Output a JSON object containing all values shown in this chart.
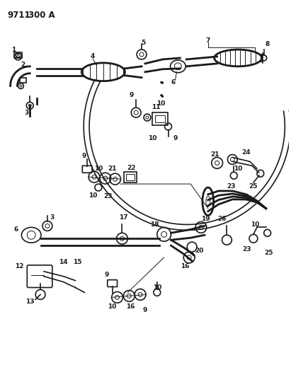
{
  "title": "9711 300 A",
  "bg_color": "#ffffff",
  "line_color": "#1a1a1a",
  "title_fontsize": 8.5,
  "label_fontsize": 6.5,
  "figsize": [
    4.11,
    5.33
  ],
  "dpi": 100
}
